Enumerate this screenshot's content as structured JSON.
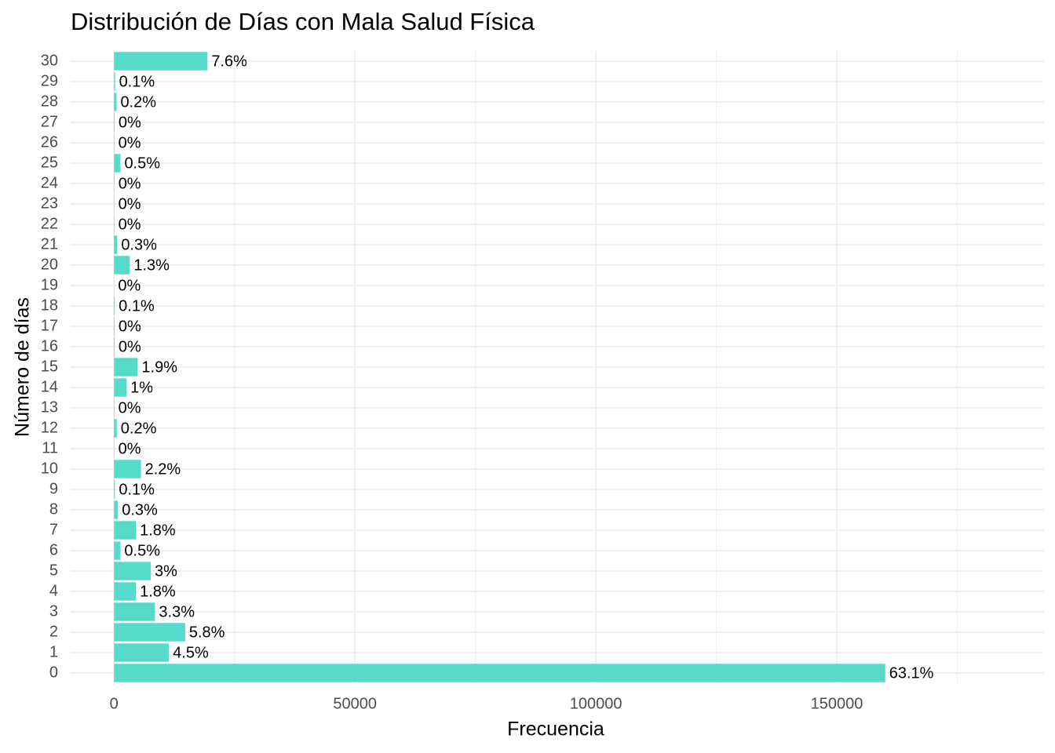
{
  "chart_data": {
    "type": "barh",
    "title": "Distribución de Días con Mala Salud Física",
    "xlabel": "Frecuencia",
    "ylabel": "Número de días",
    "categories": [
      "0",
      "1",
      "2",
      "3",
      "4",
      "5",
      "6",
      "7",
      "8",
      "9",
      "10",
      "11",
      "12",
      "13",
      "14",
      "15",
      "16",
      "17",
      "18",
      "19",
      "20",
      "21",
      "22",
      "23",
      "24",
      "25",
      "26",
      "27",
      "28",
      "29",
      "30"
    ],
    "values": [
      160052,
      11388,
      14764,
      8495,
      4542,
      7622,
      1330,
      4538,
      809,
      179,
      5595,
      60,
      578,
      68,
      2587,
      4916,
      112,
      96,
      152,
      22,
      3273,
      663,
      70,
      56,
      72,
      1336,
      69,
      99,
      522,
      215,
      19400
    ],
    "value_labels": [
      "63.1%",
      "4.5%",
      "5.8%",
      "3.3%",
      "1.8%",
      "3%",
      "0.5%",
      "1.8%",
      "0.3%",
      "0.1%",
      "2.2%",
      "0%",
      "0.2%",
      "0%",
      "1%",
      "1.9%",
      "0%",
      "0%",
      "0.1%",
      "0%",
      "1.3%",
      "0.3%",
      "0%",
      "0%",
      "0%",
      "0.5%",
      "0%",
      "0%",
      "0.2%",
      "0.1%",
      "7.6%"
    ],
    "color": "#56dbcb",
    "xlim": [
      -9000,
      193000
    ],
    "xticks": [
      0,
      50000,
      100000,
      150000
    ],
    "xminor": [
      25000,
      75000,
      125000,
      175000
    ],
    "grid": true
  }
}
